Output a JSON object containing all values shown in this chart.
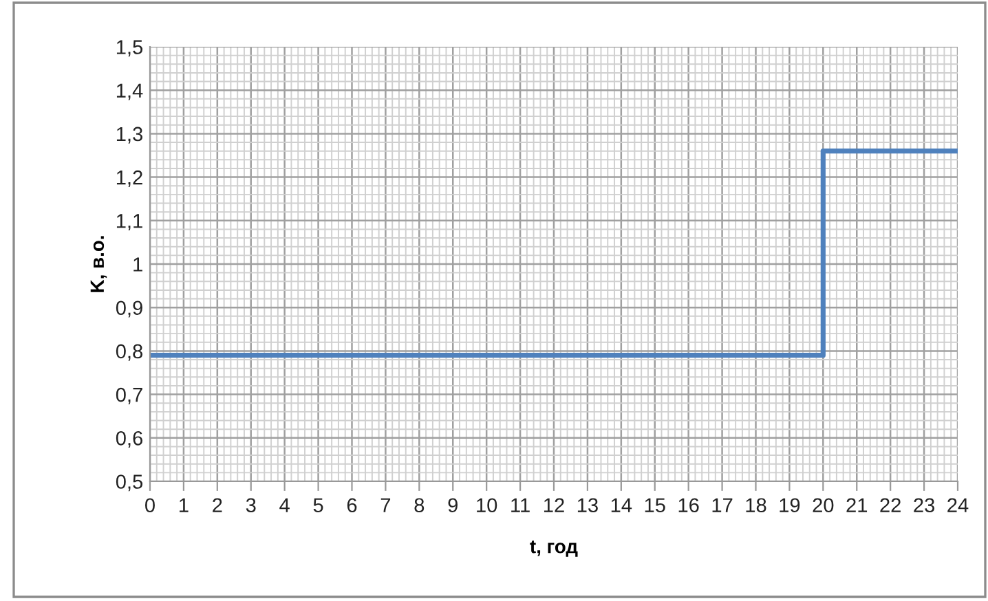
{
  "chart_data": {
    "type": "step",
    "xlabel": "t, год",
    "ylabel": "K, в.о.",
    "series": [
      {
        "color": "#4f81bd",
        "x": [
          0,
          20,
          24
        ],
        "values": [
          0.79,
          1.26,
          1.26
        ]
      }
    ],
    "xlim": [
      0,
      24
    ],
    "xticks": [
      0,
      1,
      2,
      3,
      4,
      5,
      6,
      7,
      8,
      9,
      10,
      11,
      12,
      13,
      14,
      15,
      16,
      17,
      18,
      19,
      20,
      21,
      22,
      23,
      24
    ],
    "ylim": [
      0.5,
      1.5
    ],
    "yticks": [
      {
        "value": 0.5,
        "label": "0,5"
      },
      {
        "value": 0.6,
        "label": "0,6"
      },
      {
        "value": 0.7,
        "label": "0,7"
      },
      {
        "value": 0.8,
        "label": "0,8"
      },
      {
        "value": 0.9,
        "label": "0,9"
      },
      {
        "value": 1,
        "label": "1"
      },
      {
        "value": 1.1,
        "label": "1,1"
      },
      {
        "value": 1.2,
        "label": "1,2"
      },
      {
        "value": 1.3,
        "label": "1,3"
      },
      {
        "value": 1.4,
        "label": "1,4"
      },
      {
        "value": 1.5,
        "label": "1,5"
      }
    ],
    "grid": true
  }
}
